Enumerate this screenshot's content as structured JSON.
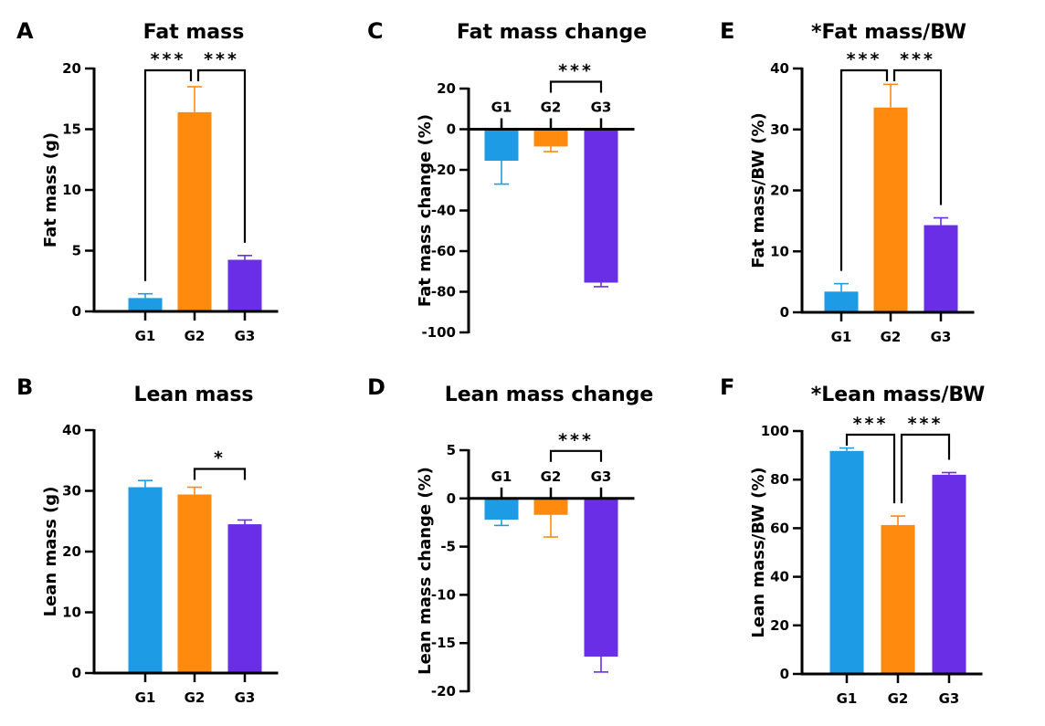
{
  "colors": {
    "G1": "#1E9BE5",
    "G2": "#FF8A0D",
    "G3": "#6A2EE6"
  },
  "chart_data": [
    {
      "panel": "A",
      "type": "bar",
      "title": "Fat mass",
      "ylabel": "Fat mass (g)",
      "categories": [
        "G1",
        "G2",
        "G3"
      ],
      "values": [
        1.1,
        16.4,
        4.25
      ],
      "errors": [
        0.35,
        2.1,
        0.35
      ],
      "ylim": [
        0,
        20
      ],
      "yticks": [
        0,
        5,
        10,
        15,
        20
      ],
      "axis_at_zero": false,
      "significance": [
        {
          "from": 0,
          "to": 1,
          "label": "***"
        },
        {
          "from": 1,
          "to": 2,
          "label": "***"
        }
      ]
    },
    {
      "panel": "B",
      "type": "bar",
      "title": "Lean mass",
      "ylabel": "Lean mass (g)",
      "categories": [
        "G1",
        "G2",
        "G3"
      ],
      "values": [
        30.6,
        29.4,
        24.5
      ],
      "errors": [
        1.1,
        1.2,
        0.7
      ],
      "ylim": [
        0,
        40
      ],
      "yticks": [
        0,
        10,
        20,
        30,
        40
      ],
      "axis_at_zero": false,
      "significance": [
        {
          "from": 1,
          "to": 2,
          "label": "*"
        }
      ]
    },
    {
      "panel": "C",
      "type": "bar",
      "title": "Fat mass change",
      "ylabel": "Fat mass change (%)",
      "categories": [
        "G1",
        "G2",
        "G3"
      ],
      "values": [
        -15.5,
        -8.5,
        -75.5
      ],
      "errors": [
        11.5,
        2.5,
        2.0
      ],
      "ylim": [
        -100,
        20
      ],
      "yticks": [
        -100,
        -80,
        -60,
        -40,
        -20,
        0,
        20
      ],
      "axis_at_zero": true,
      "significance": [
        {
          "from": 1,
          "to": 2,
          "label": "***"
        }
      ]
    },
    {
      "panel": "D",
      "type": "bar",
      "title": "Lean mass change",
      "ylabel": "Lean mass change (%)",
      "categories": [
        "G1",
        "G2",
        "G3"
      ],
      "values": [
        -2.2,
        -1.7,
        -16.4
      ],
      "errors": [
        0.6,
        2.3,
        1.6
      ],
      "ylim": [
        -20,
        5
      ],
      "yticks": [
        -20,
        -15,
        -10,
        -5,
        0,
        5
      ],
      "axis_at_zero": true,
      "significance": [
        {
          "from": 1,
          "to": 2,
          "label": "***"
        }
      ]
    },
    {
      "panel": "E",
      "type": "bar",
      "title": "*Fat mass/BW",
      "ylabel": "Fat mass/BW (%)",
      "categories": [
        "G1",
        "G2",
        "G3"
      ],
      "values": [
        3.4,
        33.6,
        14.3
      ],
      "errors": [
        1.3,
        3.8,
        1.2
      ],
      "ylim": [
        0,
        40
      ],
      "yticks": [
        0,
        10,
        20,
        30,
        40
      ],
      "axis_at_zero": false,
      "significance": [
        {
          "from": 0,
          "to": 1,
          "label": "***"
        },
        {
          "from": 1,
          "to": 2,
          "label": "***"
        }
      ]
    },
    {
      "panel": "F",
      "type": "bar",
      "title": "*Lean mass/BW",
      "ylabel": "Lean mass/BW (%)",
      "categories": [
        "G1",
        "G2",
        "G3"
      ],
      "values": [
        91.8,
        61.3,
        82.0
      ],
      "errors": [
        1.2,
        3.7,
        0.9
      ],
      "ylim": [
        0,
        100
      ],
      "yticks": [
        0,
        20,
        40,
        60,
        80,
        100
      ],
      "axis_at_zero": false,
      "significance": [
        {
          "from": 0,
          "to": 1,
          "label": "***"
        },
        {
          "from": 1,
          "to": 2,
          "label": "***"
        }
      ]
    }
  ]
}
